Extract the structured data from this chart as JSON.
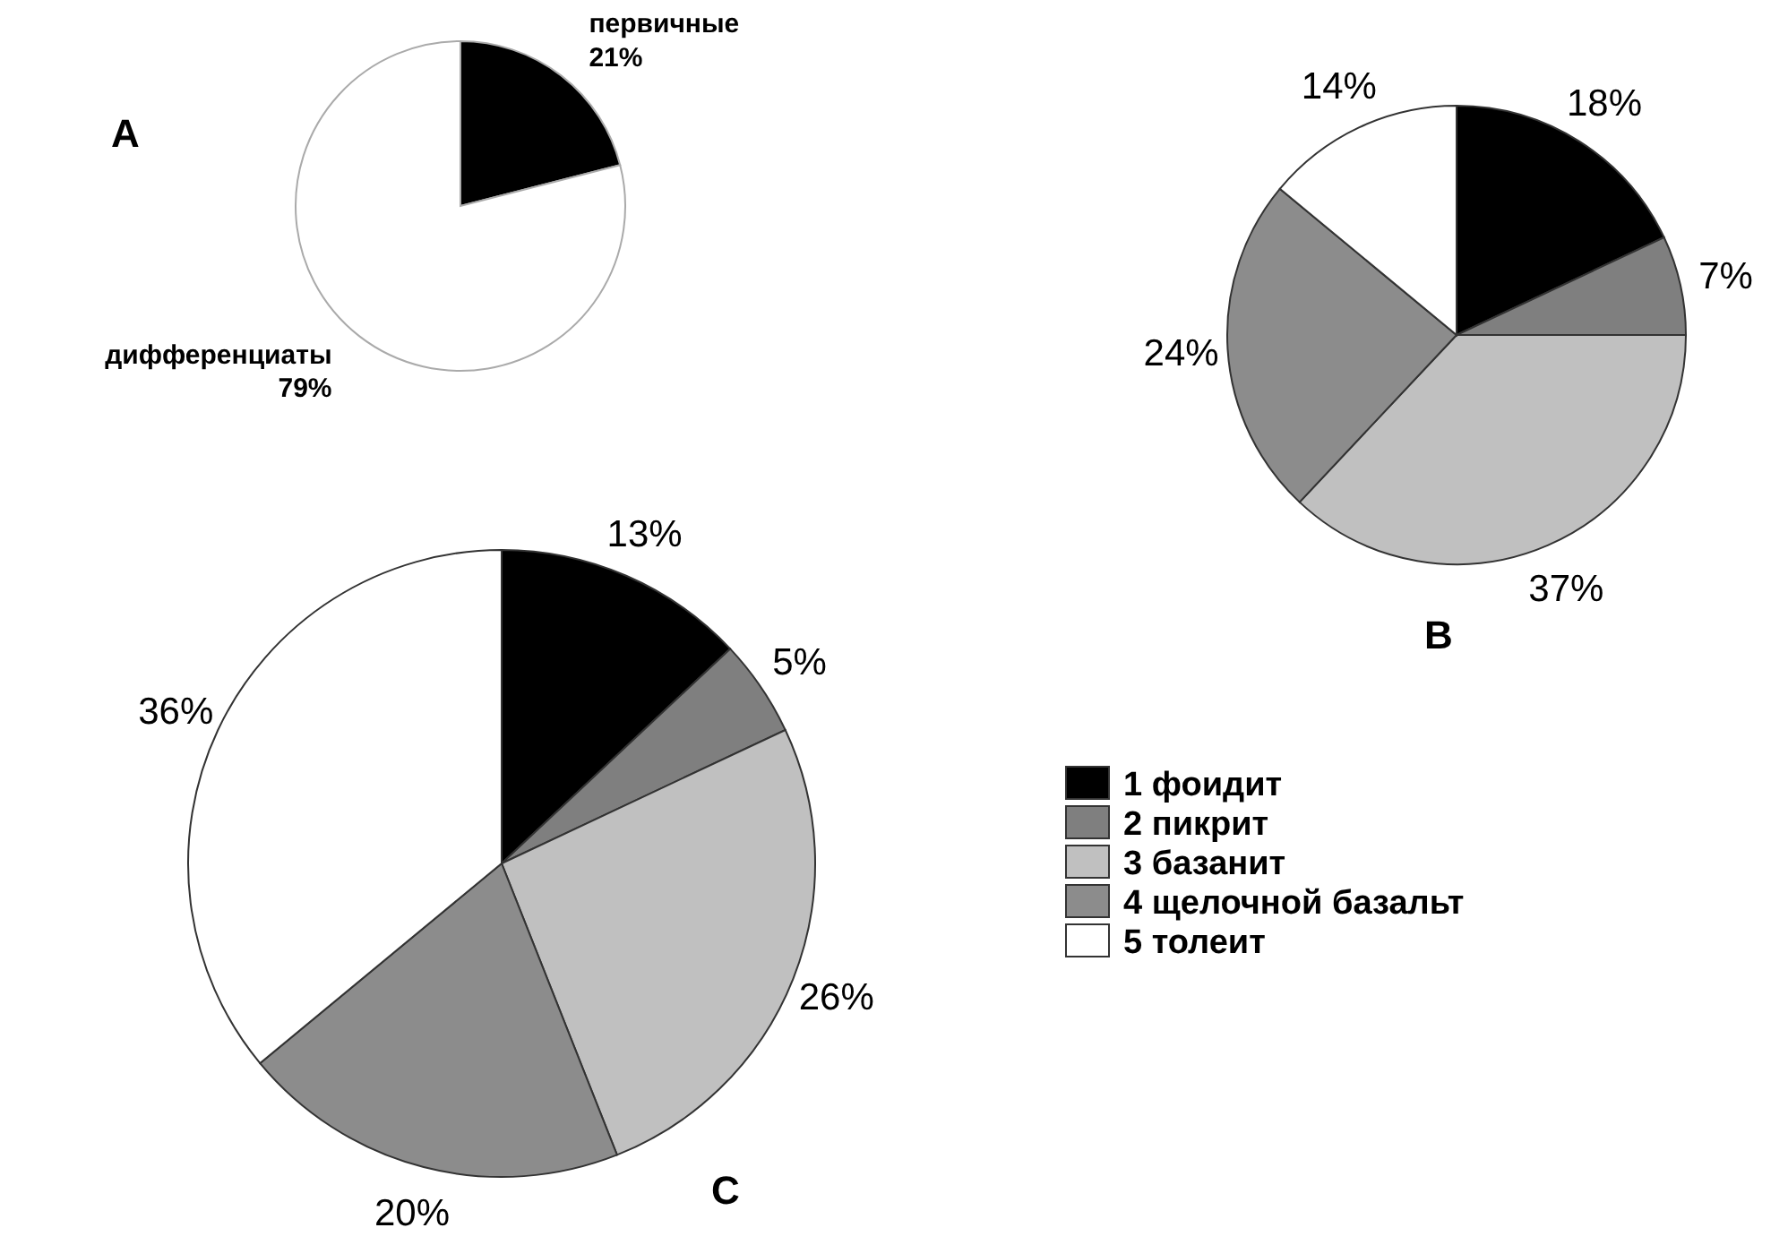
{
  "chart_data": [
    {
      "type": "pie",
      "title": "A",
      "categories": [
        "первичные",
        "дифференциаты"
      ],
      "values": [
        21,
        79
      ],
      "colors": [
        "#000000",
        "#ffffff"
      ],
      "value_labels": [
        "21%",
        "79%"
      ]
    },
    {
      "type": "pie",
      "title": "B",
      "categories": [
        null,
        null,
        null,
        null,
        null
      ],
      "values": [
        18,
        7,
        37,
        24,
        14
      ],
      "colors": [
        "#000000",
        "#7f7f7f",
        "#c0c0c0",
        "#8c8c8c",
        "#ffffff"
      ],
      "value_labels": [
        "18%",
        "7%",
        "37%",
        "24%",
        "14%"
      ]
    },
    {
      "type": "pie",
      "title": "C",
      "categories": [
        "1 фоидит",
        "2 пикрит",
        "3 базанит",
        "4 щелочной базальт",
        "5 толеит"
      ],
      "values": [
        13,
        5,
        26,
        20,
        36
      ],
      "colors": [
        "#000000",
        "#7f7f7f",
        "#c0c0c0",
        "#8c8c8c",
        "#ffffff"
      ],
      "value_labels": [
        "13%",
        "5%",
        "26%",
        "20%",
        "36%"
      ],
      "legend": "right"
    }
  ]
}
